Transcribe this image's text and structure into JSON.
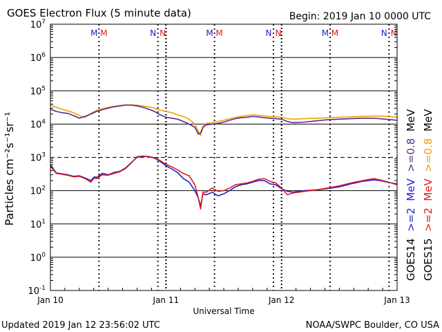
{
  "header": {
    "title": "GOES Electron Flux (5 minute data)",
    "begin": "Begin: 2019 Jan 10 0000 UTC"
  },
  "footer": {
    "updated": "Updated 2019 Jan 12 23:56:02 UTC",
    "credit": "NOAA/SWPC Boulder, CO USA"
  },
  "colors": {
    "goes14_high": "#2020d0",
    "goes15_high": "#e01818",
    "goes14_low": "#5a2a8c",
    "goes15_low": "#f0a000",
    "dashed_threshold": "#000000"
  },
  "chart_data": {
    "type": "line",
    "title": "GOES Electron Flux (5 minute data)",
    "xlabel": "Universal Time",
    "ylabel": "Particles cm⁻²s⁻¹sr⁻¹",
    "y_scale": "log",
    "ylim": [
      0.1,
      10000000
    ],
    "y_ticks": [
      {
        "base": "10",
        "exp": "7"
      },
      {
        "base": "10",
        "exp": "6"
      },
      {
        "base": "10",
        "exp": "5"
      },
      {
        "base": "10",
        "exp": "4"
      },
      {
        "base": "10",
        "exp": "3"
      },
      {
        "base": "10",
        "exp": "2"
      },
      {
        "base": "10",
        "exp": "1"
      },
      {
        "base": "10",
        "exp": "0"
      },
      {
        "base": "10",
        "exp": "-1"
      }
    ],
    "x_ticks": [
      "Jan 10",
      "Jan 11",
      "Jan 12",
      "Jan 13"
    ],
    "x_unit": "days since 2019 Jan 10 0000 UTC",
    "xlim": [
      0,
      3
    ],
    "grid": true,
    "threshold": {
      "value": 1000,
      "style": "dashed"
    },
    "eclipse_marks": {
      "MM": {
        "label_a": "M",
        "label_b": "M",
        "positions": [
          0.42,
          1.42,
          2.42
        ]
      },
      "NN": {
        "label_a": "N",
        "label_b": "N",
        "positions": [
          0.93,
          1.93,
          2.93
        ]
      }
    },
    "legend": {
      "placement": "right",
      "satellites": [
        "GOES14",
        "GOES15"
      ],
      "entries": [
        {
          "label": ">=2",
          "unit": "MeV"
        },
        {
          "label": ">=2",
          "unit": "MeV"
        },
        {
          "label": ">=0.8",
          "unit": "MeV"
        },
        {
          "label": ">=0.8",
          "unit": "MeV"
        }
      ]
    },
    "series": [
      {
        "name": "GOES14 >=2 MeV",
        "color_key": "goes14_high",
        "x": [
          0,
          0.05,
          0.1,
          0.15,
          0.2,
          0.25,
          0.3,
          0.35,
          0.38,
          0.4,
          0.45,
          0.5,
          0.55,
          0.6,
          0.65,
          0.7,
          0.75,
          0.8,
          0.85,
          0.9,
          0.95,
          1.0,
          1.05,
          1.1,
          1.15,
          1.2,
          1.25,
          1.28,
          1.3,
          1.32,
          1.35,
          1.4,
          1.45,
          1.5,
          1.55,
          1.6,
          1.65,
          1.7,
          1.75,
          1.8,
          1.85,
          1.9,
          1.95,
          2.0,
          2.05,
          2.1,
          2.15,
          2.2,
          2.3,
          2.4,
          2.5,
          2.6,
          2.7,
          2.8,
          2.85,
          2.9,
          2.95,
          3.0
        ],
        "y": [
          600,
          340,
          320,
          300,
          270,
          280,
          240,
          200,
          260,
          250,
          330,
          300,
          350,
          380,
          480,
          700,
          1000,
          1080,
          1050,
          950,
          750,
          560,
          450,
          350,
          230,
          180,
          100,
          60,
          35,
          80,
          75,
          90,
          70,
          80,
          100,
          130,
          150,
          160,
          180,
          200,
          200,
          160,
          150,
          115,
          95,
          90,
          95,
          100,
          105,
          115,
          130,
          160,
          190,
          210,
          200,
          185,
          170,
          160
        ]
      },
      {
        "name": "GOES15 >=2 MeV",
        "color_key": "goes15_high",
        "x": [
          0,
          0.05,
          0.1,
          0.15,
          0.2,
          0.25,
          0.3,
          0.35,
          0.38,
          0.4,
          0.45,
          0.5,
          0.55,
          0.6,
          0.65,
          0.7,
          0.75,
          0.8,
          0.85,
          0.9,
          0.95,
          1.0,
          1.05,
          1.1,
          1.15,
          1.2,
          1.25,
          1.28,
          1.3,
          1.32,
          1.35,
          1.4,
          1.45,
          1.5,
          1.55,
          1.6,
          1.65,
          1.7,
          1.75,
          1.8,
          1.85,
          1.9,
          1.95,
          2.0,
          2.05,
          2.1,
          2.15,
          2.2,
          2.3,
          2.4,
          2.5,
          2.6,
          2.7,
          2.8,
          2.85,
          2.9,
          2.95,
          3.0
        ],
        "y": [
          550,
          330,
          310,
          290,
          260,
          270,
          230,
          180,
          240,
          230,
          300,
          290,
          330,
          370,
          460,
          680,
          1050,
          1100,
          1060,
          980,
          800,
          620,
          520,
          420,
          330,
          280,
          150,
          60,
          28,
          90,
          90,
          120,
          95,
          100,
          120,
          150,
          160,
          170,
          190,
          220,
          230,
          190,
          170,
          120,
          75,
          85,
          90,
          95,
          105,
          120,
          140,
          170,
          200,
          230,
          210,
          190,
          170,
          150
        ]
      },
      {
        "name": "GOES14 >=0.8 MeV",
        "color_key": "goes14_low",
        "x": [
          0,
          0.05,
          0.1,
          0.15,
          0.2,
          0.25,
          0.3,
          0.35,
          0.4,
          0.45,
          0.5,
          0.55,
          0.6,
          0.65,
          0.7,
          0.75,
          0.8,
          0.85,
          0.9,
          0.95,
          1.0,
          1.05,
          1.1,
          1.15,
          1.2,
          1.25,
          1.28,
          1.3,
          1.32,
          1.35,
          1.4,
          1.45,
          1.5,
          1.55,
          1.6,
          1.65,
          1.7,
          1.75,
          1.8,
          1.85,
          1.9,
          1.95,
          2.0,
          2.05,
          2.1,
          2.2,
          2.3,
          2.4,
          2.5,
          2.6,
          2.7,
          2.8,
          2.9,
          3.0
        ],
        "y": [
          28000,
          24000,
          22000,
          21000,
          18000,
          15000,
          17000,
          20000,
          24000,
          27000,
          30000,
          33000,
          35000,
          37000,
          37000,
          35000,
          32000,
          28000,
          24000,
          19000,
          16000,
          15000,
          14000,
          12000,
          10000,
          8000,
          5000,
          5500,
          8000,
          9500,
          10000,
          10500,
          11500,
          13000,
          14500,
          15500,
          16000,
          17000,
          16500,
          15500,
          15000,
          14500,
          14000,
          12000,
          11000,
          11500,
          12500,
          13500,
          14000,
          14500,
          15000,
          15000,
          14000,
          13000
        ]
      },
      {
        "name": "GOES15 >=0.8 MeV",
        "color_key": "goes15_low",
        "x": [
          0,
          0.05,
          0.1,
          0.15,
          0.2,
          0.25,
          0.3,
          0.35,
          0.4,
          0.45,
          0.5,
          0.55,
          0.6,
          0.65,
          0.7,
          0.75,
          0.8,
          0.85,
          0.9,
          0.95,
          1.0,
          1.05,
          1.1,
          1.15,
          1.2,
          1.25,
          1.28,
          1.3,
          1.32,
          1.35,
          1.4,
          1.45,
          1.5,
          1.55,
          1.6,
          1.65,
          1.7,
          1.75,
          1.8,
          1.85,
          1.9,
          1.95,
          2.0,
          2.05,
          2.1,
          2.2,
          2.3,
          2.4,
          2.5,
          2.6,
          2.7,
          2.8,
          2.9,
          3.0
        ],
        "y": [
          38000,
          32000,
          28000,
          25000,
          22000,
          18000,
          16000,
          21000,
          26000,
          29000,
          32000,
          34000,
          36000,
          38000,
          38000,
          37000,
          35000,
          33000,
          30000,
          26000,
          24000,
          22000,
          19000,
          17000,
          14000,
          10000,
          6000,
          4500,
          8500,
          10500,
          11000,
          12000,
          13000,
          14500,
          16000,
          17000,
          18000,
          19000,
          18500,
          17500,
          17000,
          16500,
          16000,
          14500,
          14000,
          14500,
          15000,
          15500,
          16000,
          16500,
          17000,
          17500,
          17000,
          16000
        ]
      }
    ]
  }
}
